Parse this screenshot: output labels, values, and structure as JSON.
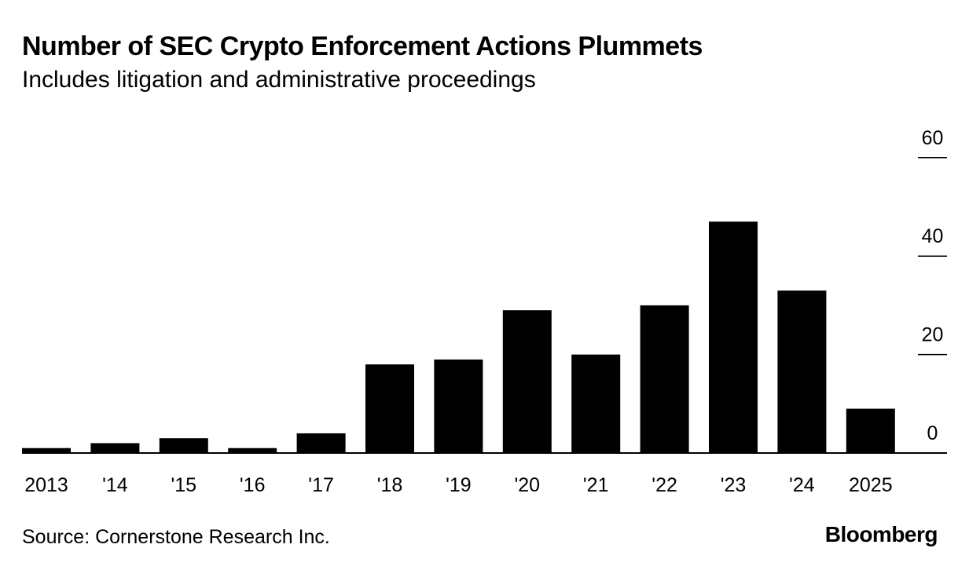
{
  "header": {
    "title": "Number of SEC Crypto Enforcement Actions Plummets",
    "subtitle": "Includes litigation and administrative proceedings"
  },
  "footer": {
    "source": "Source: Cornerstone Research Inc.",
    "brand": "Bloomberg"
  },
  "chart_data": {
    "type": "bar",
    "title": "Number of SEC Crypto Enforcement Actions Plummets",
    "subtitle": "Includes litigation and administrative proceedings",
    "categories": [
      "2013",
      "'14",
      "'15",
      "'16",
      "'17",
      "'18",
      "'19",
      "'20",
      "'21",
      "'22",
      "'23",
      "'24",
      "2025"
    ],
    "values": [
      1,
      2,
      3,
      1,
      4,
      18,
      19,
      29,
      20,
      30,
      47,
      33,
      9
    ],
    "ylim": [
      0,
      60
    ],
    "yticks": [
      0,
      20,
      40,
      60
    ],
    "y_axis_side": "right",
    "grid": false,
    "bar_color": "#000000"
  }
}
